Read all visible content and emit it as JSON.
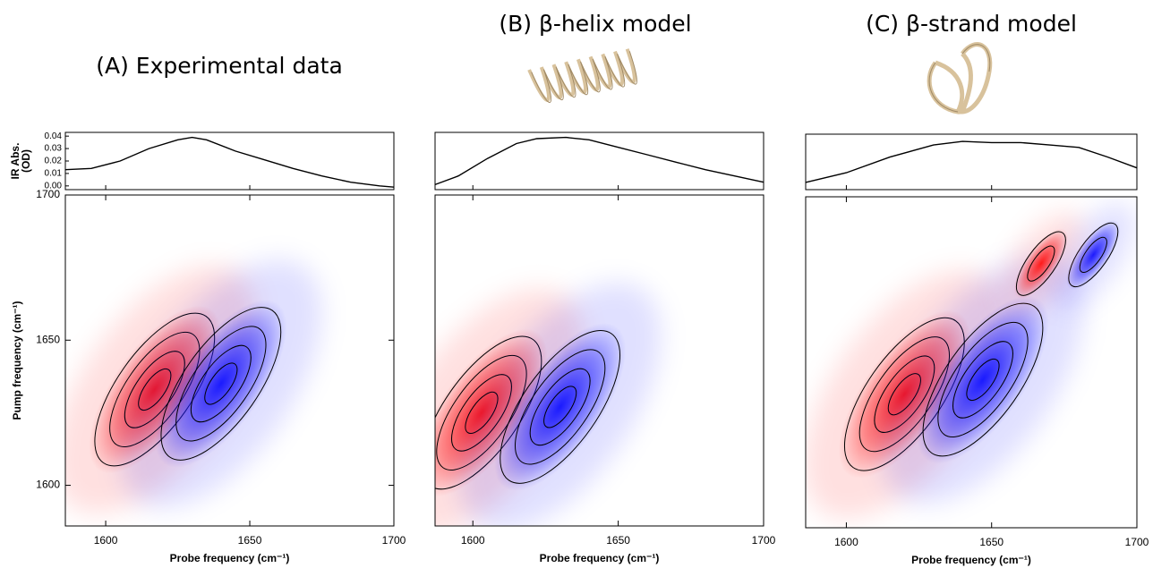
{
  "chart_data": [
    {
      "title": "(A) Experimental data",
      "absorption": {
        "type": "line",
        "y_label": [
          "IR Abs.",
          "(OD)"
        ],
        "color": "#000000",
        "x": [
          1586,
          1595,
          1605,
          1615,
          1625,
          1630,
          1635,
          1645,
          1655,
          1665,
          1675,
          1685,
          1695,
          1700
        ],
        "values": [
          0.013,
          0.014,
          0.02,
          0.03,
          0.037,
          0.039,
          0.037,
          0.028,
          0.021,
          0.014,
          0.008,
          0.003,
          0.0,
          -0.001
        ],
        "xlim": [
          1586,
          1700
        ],
        "ylim": [
          -0.003,
          0.043
        ],
        "yticks": [
          {
            "value": 0,
            "label": "0.00"
          },
          {
            "value": 0.01,
            "label": "0.01"
          },
          {
            "value": 0.02,
            "label": "0.02"
          },
          {
            "value": 0.03,
            "label": "0.03"
          },
          {
            "value": 0.04,
            "label": "0.04"
          }
        ]
      },
      "spectrum": {
        "type": "contour",
        "x_label": "Probe frequency (cm⁻¹)",
        "y_label": "Pump frequency (cm⁻¹)",
        "xlim": [
          1586,
          1700
        ],
        "ylim": [
          1586,
          1700
        ],
        "xticks": [
          1600,
          1650,
          1700
        ],
        "yticks": [
          1600,
          1650,
          1700
        ],
        "peaks": [
          {
            "probe": 1617,
            "pump": 1633,
            "color": "#ff1a1a"
          },
          {
            "probe": 1640,
            "pump": 1635,
            "color": "#1a1aff"
          }
        ]
      }
    },
    {
      "title": "(B) β-helix model",
      "absorption": {
        "type": "line",
        "color": "#000000",
        "x": [
          1587,
          1595,
          1605,
          1615,
          1622,
          1632,
          1640,
          1650,
          1660,
          1670,
          1680,
          1690,
          1700
        ],
        "values": [
          0.001,
          0.008,
          0.022,
          0.034,
          0.038,
          0.039,
          0.037,
          0.031,
          0.025,
          0.019,
          0.013,
          0.008,
          0.003
        ],
        "xlim": [
          1587,
          1700
        ],
        "ylim": [
          -0.003,
          0.043
        ]
      },
      "spectrum": {
        "type": "contour",
        "x_label": "Probe frequency (cm⁻¹)",
        "xlim": [
          1587,
          1700
        ],
        "ylim": [
          1586,
          1700
        ],
        "xticks": [
          1600,
          1650,
          1700
        ],
        "peaks": [
          {
            "probe": 1603,
            "pump": 1625,
            "color": "#ff1a1a"
          },
          {
            "probe": 1630,
            "pump": 1627,
            "color": "#1a1aff"
          }
        ]
      }
    },
    {
      "title": "(C) β-strand model",
      "absorption": {
        "type": "line",
        "color": "#000000",
        "x": [
          1586,
          1600,
          1615,
          1630,
          1640,
          1650,
          1660,
          1670,
          1680,
          1690,
          1700
        ],
        "values": [
          0.003,
          0.011,
          0.024,
          0.034,
          0.037,
          0.036,
          0.036,
          0.034,
          0.032,
          0.024,
          0.015
        ],
        "xlim": [
          1586,
          1700
        ],
        "ylim": [
          -0.003,
          0.043
        ]
      },
      "spectrum": {
        "type": "contour",
        "x_label": "Probe frequency (cm⁻¹)",
        "xlim": [
          1586,
          1700
        ],
        "ylim": [
          1586,
          1700
        ],
        "xticks": [
          1600,
          1650,
          1700
        ],
        "peaks": [
          {
            "probe": 1620,
            "pump": 1632,
            "color": "#ff1a1a"
          },
          {
            "probe": 1647,
            "pump": 1637,
            "color": "#1a1aff"
          },
          {
            "probe": 1685,
            "pump": 1680,
            "color": "#1a1aff"
          },
          {
            "probe": 1667,
            "pump": 1677,
            "color": "#ff1a1a"
          }
        ]
      }
    }
  ]
}
